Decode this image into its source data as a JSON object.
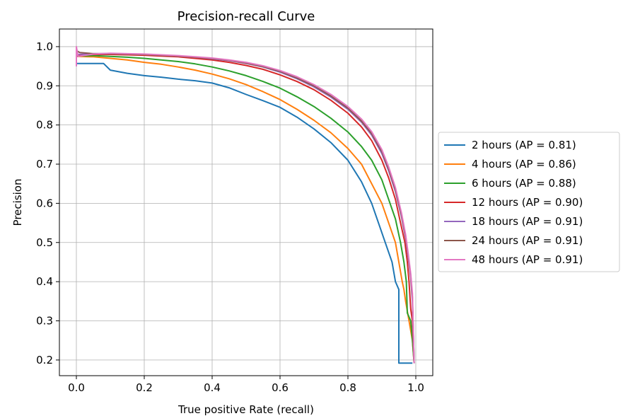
{
  "chart_data": {
    "type": "line",
    "title": "Precision-recall Curve",
    "xlabel": "True positive Rate (recall)",
    "ylabel": "Precision",
    "xlim": [
      -0.05,
      1.05
    ],
    "ylim": [
      0.16,
      1.045
    ],
    "xticks": [
      "0.0",
      "0.2",
      "0.4",
      "0.6",
      "0.8",
      "1.0"
    ],
    "xtick_values": [
      0.0,
      0.2,
      0.4,
      0.6,
      0.8,
      1.0
    ],
    "yticks": [
      "0.2",
      "0.3",
      "0.4",
      "0.5",
      "0.6",
      "0.7",
      "0.8",
      "0.9",
      "1.0"
    ],
    "ytick_values": [
      0.2,
      0.3,
      0.4,
      0.5,
      0.6,
      0.7,
      0.8,
      0.9,
      1.0
    ],
    "grid": true,
    "legend_position": "center-right-outside",
    "series": [
      {
        "name": "2 hours (AP = 0.81)",
        "color": "#1f77b4",
        "points": [
          [
            0,
            0.95
          ],
          [
            0.0,
            0.957
          ],
          [
            0.08,
            0.957
          ],
          [
            0.1,
            0.94
          ],
          [
            0.15,
            0.932
          ],
          [
            0.2,
            0.926
          ],
          [
            0.25,
            0.922
          ],
          [
            0.3,
            0.917
          ],
          [
            0.35,
            0.913
          ],
          [
            0.4,
            0.907
          ],
          [
            0.45,
            0.895
          ],
          [
            0.5,
            0.878
          ],
          [
            0.55,
            0.862
          ],
          [
            0.6,
            0.845
          ],
          [
            0.65,
            0.82
          ],
          [
            0.7,
            0.79
          ],
          [
            0.75,
            0.755
          ],
          [
            0.8,
            0.71
          ],
          [
            0.84,
            0.655
          ],
          [
            0.87,
            0.6
          ],
          [
            0.89,
            0.55
          ],
          [
            0.91,
            0.5
          ],
          [
            0.93,
            0.45
          ],
          [
            0.94,
            0.4
          ],
          [
            0.95,
            0.38
          ],
          [
            0.95,
            0.192
          ],
          [
            0.99,
            0.192
          ]
        ]
      },
      {
        "name": "4 hours (AP = 0.86)",
        "color": "#ff7f0e",
        "points": [
          [
            0,
            0.975
          ],
          [
            0.05,
            0.974
          ],
          [
            0.1,
            0.97
          ],
          [
            0.15,
            0.966
          ],
          [
            0.2,
            0.96
          ],
          [
            0.25,
            0.955
          ],
          [
            0.3,
            0.948
          ],
          [
            0.35,
            0.94
          ],
          [
            0.4,
            0.93
          ],
          [
            0.45,
            0.918
          ],
          [
            0.5,
            0.903
          ],
          [
            0.55,
            0.885
          ],
          [
            0.6,
            0.865
          ],
          [
            0.65,
            0.84
          ],
          [
            0.7,
            0.812
          ],
          [
            0.75,
            0.78
          ],
          [
            0.8,
            0.74
          ],
          [
            0.84,
            0.7
          ],
          [
            0.87,
            0.65
          ],
          [
            0.9,
            0.6
          ],
          [
            0.92,
            0.55
          ],
          [
            0.94,
            0.5
          ],
          [
            0.95,
            0.45
          ],
          [
            0.96,
            0.4
          ],
          [
            0.965,
            0.38
          ],
          [
            0.97,
            0.35
          ],
          [
            0.98,
            0.3
          ],
          [
            0.99,
            0.25
          ],
          [
            0.995,
            0.192
          ]
        ]
      },
      {
        "name": "6 hours (AP = 0.88)",
        "color": "#2ca02c",
        "points": [
          [
            0,
            0.976
          ],
          [
            0.05,
            0.977
          ],
          [
            0.1,
            0.975
          ],
          [
            0.15,
            0.973
          ],
          [
            0.2,
            0.97
          ],
          [
            0.25,
            0.966
          ],
          [
            0.3,
            0.962
          ],
          [
            0.35,
            0.956
          ],
          [
            0.4,
            0.948
          ],
          [
            0.45,
            0.938
          ],
          [
            0.5,
            0.926
          ],
          [
            0.55,
            0.911
          ],
          [
            0.6,
            0.894
          ],
          [
            0.65,
            0.872
          ],
          [
            0.7,
            0.847
          ],
          [
            0.75,
            0.817
          ],
          [
            0.8,
            0.782
          ],
          [
            0.84,
            0.745
          ],
          [
            0.87,
            0.71
          ],
          [
            0.9,
            0.66
          ],
          [
            0.92,
            0.61
          ],
          [
            0.94,
            0.56
          ],
          [
            0.955,
            0.5
          ],
          [
            0.965,
            0.45
          ],
          [
            0.972,
            0.4
          ],
          [
            0.975,
            0.32
          ],
          [
            0.985,
            0.3
          ],
          [
            0.99,
            0.25
          ],
          [
            0.995,
            0.192
          ]
        ]
      },
      {
        "name": "12 hours (AP = 0.90)",
        "color": "#d62728",
        "points": [
          [
            0,
            0.978
          ],
          [
            0.05,
            0.98
          ],
          [
            0.1,
            0.98
          ],
          [
            0.15,
            0.979
          ],
          [
            0.2,
            0.978
          ],
          [
            0.25,
            0.976
          ],
          [
            0.3,
            0.974
          ],
          [
            0.35,
            0.97
          ],
          [
            0.4,
            0.966
          ],
          [
            0.45,
            0.96
          ],
          [
            0.5,
            0.952
          ],
          [
            0.55,
            0.942
          ],
          [
            0.6,
            0.928
          ],
          [
            0.65,
            0.911
          ],
          [
            0.7,
            0.89
          ],
          [
            0.75,
            0.863
          ],
          [
            0.8,
            0.83
          ],
          [
            0.84,
            0.795
          ],
          [
            0.87,
            0.76
          ],
          [
            0.9,
            0.71
          ],
          [
            0.92,
            0.665
          ],
          [
            0.94,
            0.61
          ],
          [
            0.955,
            0.55
          ],
          [
            0.968,
            0.5
          ],
          [
            0.975,
            0.45
          ],
          [
            0.98,
            0.4
          ],
          [
            0.985,
            0.33
          ],
          [
            0.99,
            0.3
          ],
          [
            0.995,
            0.192
          ]
        ]
      },
      {
        "name": "18 hours (AP = 0.91)",
        "color": "#9467bd",
        "points": [
          [
            0,
            0.98
          ],
          [
            0.05,
            0.982
          ],
          [
            0.1,
            0.982
          ],
          [
            0.15,
            0.981
          ],
          [
            0.2,
            0.98
          ],
          [
            0.25,
            0.978
          ],
          [
            0.3,
            0.976
          ],
          [
            0.35,
            0.973
          ],
          [
            0.4,
            0.969
          ],
          [
            0.45,
            0.964
          ],
          [
            0.5,
            0.957
          ],
          [
            0.55,
            0.948
          ],
          [
            0.6,
            0.935
          ],
          [
            0.65,
            0.918
          ],
          [
            0.7,
            0.897
          ],
          [
            0.75,
            0.871
          ],
          [
            0.8,
            0.84
          ],
          [
            0.84,
            0.807
          ],
          [
            0.87,
            0.774
          ],
          [
            0.9,
            0.727
          ],
          [
            0.92,
            0.683
          ],
          [
            0.94,
            0.63
          ],
          [
            0.958,
            0.565
          ],
          [
            0.97,
            0.51
          ],
          [
            0.978,
            0.46
          ],
          [
            0.985,
            0.41
          ],
          [
            0.99,
            0.35
          ],
          [
            0.995,
            0.192
          ]
        ]
      },
      {
        "name": "24 hours (AP = 0.91)",
        "color": "#8c564b",
        "points": [
          [
            0,
            0.965
          ],
          [
            0.0,
            0.99
          ],
          [
            0.01,
            0.985
          ],
          [
            0.05,
            0.982
          ],
          [
            0.1,
            0.982
          ],
          [
            0.15,
            0.981
          ],
          [
            0.2,
            0.98
          ],
          [
            0.25,
            0.978
          ],
          [
            0.3,
            0.976
          ],
          [
            0.35,
            0.973
          ],
          [
            0.4,
            0.97
          ],
          [
            0.45,
            0.965
          ],
          [
            0.5,
            0.958
          ],
          [
            0.55,
            0.949
          ],
          [
            0.6,
            0.937
          ],
          [
            0.65,
            0.92
          ],
          [
            0.7,
            0.9
          ],
          [
            0.75,
            0.874
          ],
          [
            0.8,
            0.843
          ],
          [
            0.84,
            0.81
          ],
          [
            0.87,
            0.778
          ],
          [
            0.9,
            0.732
          ],
          [
            0.92,
            0.688
          ],
          [
            0.94,
            0.635
          ],
          [
            0.958,
            0.57
          ],
          [
            0.97,
            0.515
          ],
          [
            0.978,
            0.465
          ],
          [
            0.985,
            0.415
          ],
          [
            0.99,
            0.36
          ],
          [
            0.995,
            0.192
          ]
        ]
      },
      {
        "name": "48 hours (AP = 0.91)",
        "color": "#e377c2",
        "points": [
          [
            0,
            0.95
          ],
          [
            0.0,
            1.0
          ],
          [
            0.005,
            0.975
          ],
          [
            0.05,
            0.981
          ],
          [
            0.1,
            0.983
          ],
          [
            0.15,
            0.982
          ],
          [
            0.2,
            0.981
          ],
          [
            0.25,
            0.979
          ],
          [
            0.3,
            0.977
          ],
          [
            0.35,
            0.974
          ],
          [
            0.4,
            0.971
          ],
          [
            0.45,
            0.966
          ],
          [
            0.5,
            0.96
          ],
          [
            0.55,
            0.951
          ],
          [
            0.6,
            0.939
          ],
          [
            0.65,
            0.923
          ],
          [
            0.7,
            0.903
          ],
          [
            0.75,
            0.878
          ],
          [
            0.8,
            0.847
          ],
          [
            0.84,
            0.815
          ],
          [
            0.87,
            0.783
          ],
          [
            0.9,
            0.737
          ],
          [
            0.92,
            0.693
          ],
          [
            0.94,
            0.64
          ],
          [
            0.958,
            0.575
          ],
          [
            0.97,
            0.52
          ],
          [
            0.978,
            0.47
          ],
          [
            0.985,
            0.42
          ],
          [
            0.99,
            0.37
          ],
          [
            0.995,
            0.192
          ]
        ]
      }
    ]
  }
}
